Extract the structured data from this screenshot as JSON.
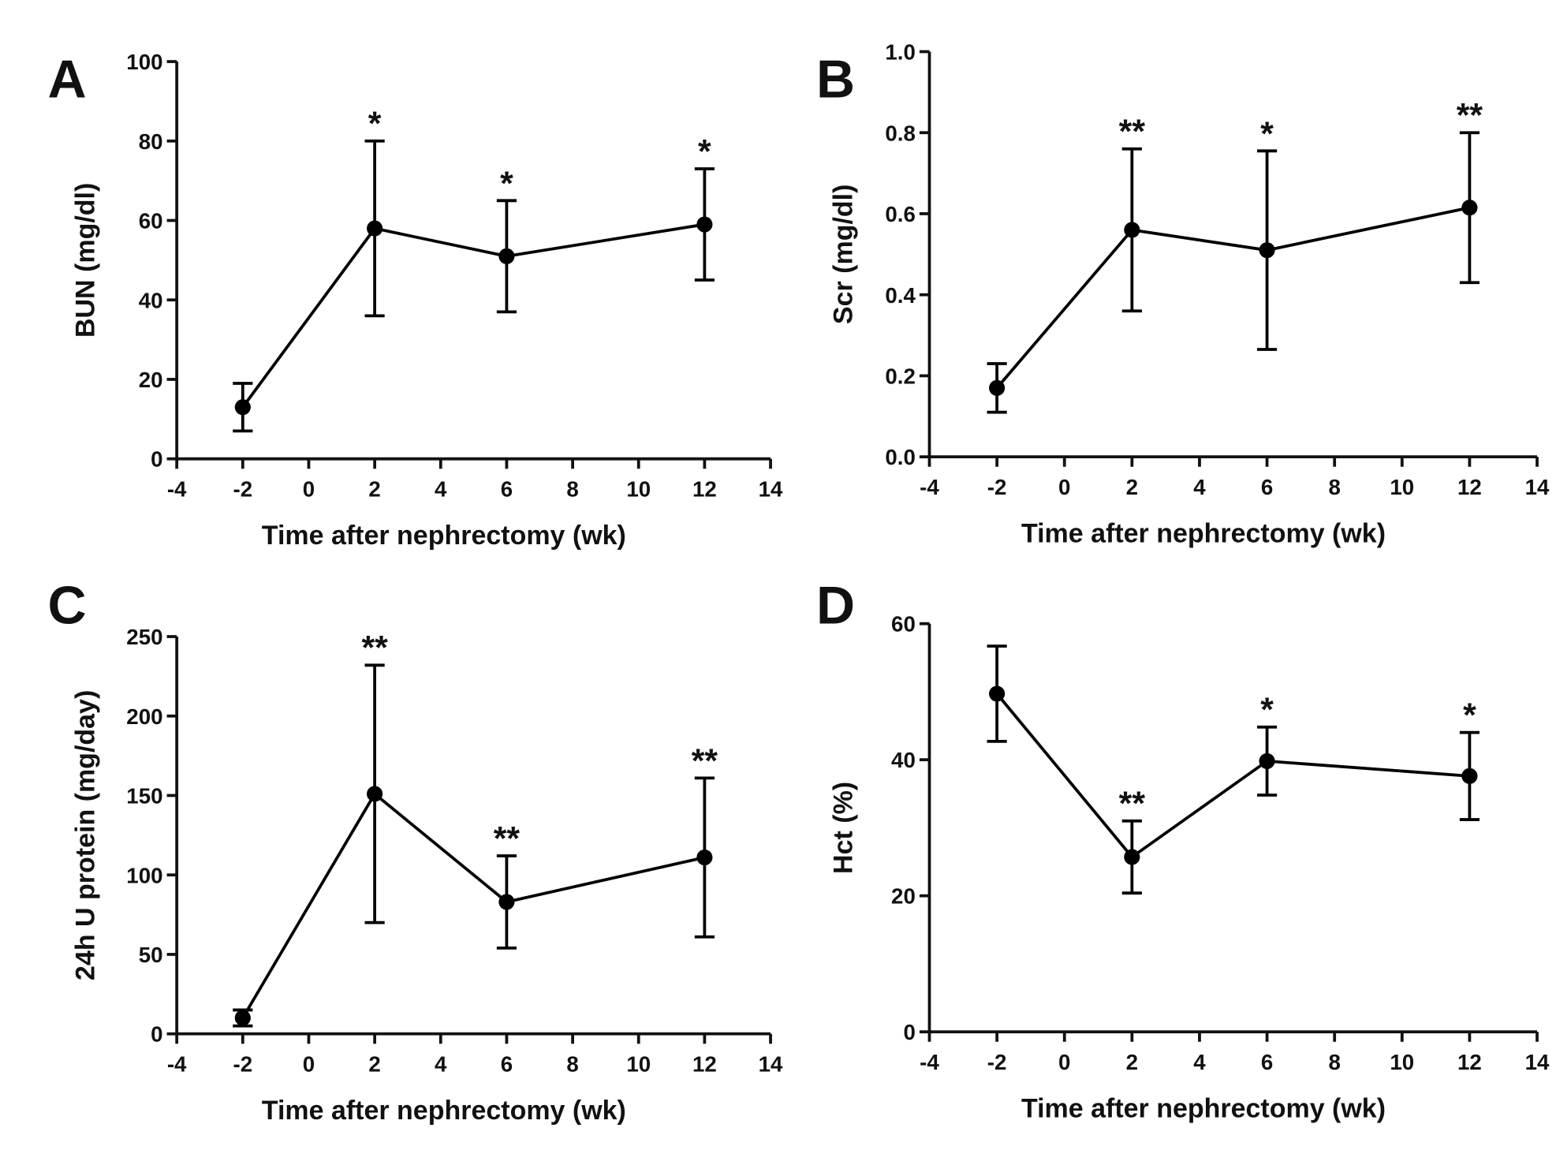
{
  "chart_data": [
    {
      "type": "line",
      "panel": "A",
      "xlabel": "Time after nephrectomy (wk)",
      "ylabel": "BUN (mg/dl)",
      "x": [
        -2,
        2,
        6,
        12
      ],
      "values": [
        13,
        58,
        51,
        59
      ],
      "errors": [
        6,
        22,
        14,
        14
      ],
      "color": "#000000",
      "xlim": [
        -4,
        14
      ],
      "xticks": [
        -4,
        -2,
        0,
        2,
        4,
        6,
        8,
        10,
        12,
        14
      ],
      "ylim": [
        0,
        100
      ],
      "yticks": [
        0,
        20,
        40,
        60,
        80,
        100
      ],
      "annotations": [
        {
          "x": 2,
          "text": "*"
        },
        {
          "x": 6,
          "text": "*"
        },
        {
          "x": 12,
          "text": "*"
        }
      ]
    },
    {
      "type": "line",
      "panel": "B",
      "xlabel": "Time after nephrectomy (wk)",
      "ylabel": "Scr (mg/dl)",
      "x": [
        -2,
        2,
        6,
        12
      ],
      "values": [
        0.17,
        0.56,
        0.51,
        0.615
      ],
      "errors": [
        0.06,
        0.2,
        0.245,
        0.185
      ],
      "color": "#000000",
      "xlim": [
        -4,
        14
      ],
      "xticks": [
        -4,
        -2,
        0,
        2,
        4,
        6,
        8,
        10,
        12,
        14
      ],
      "ylim": [
        0,
        1
      ],
      "yticks": [
        {
          "value": 0,
          "label": "0.0"
        },
        0.2,
        0.4,
        0.6,
        0.8,
        {
          "value": 1,
          "label": "1.0"
        }
      ],
      "annotations": [
        {
          "x": 2,
          "text": "**"
        },
        {
          "x": 6,
          "text": "*"
        },
        {
          "x": 12,
          "text": "**"
        }
      ]
    },
    {
      "type": "line",
      "panel": "C",
      "xlabel": "Time after nephrectomy (wk)",
      "ylabel": "24h U protein (mg/day)",
      "x": [
        -2,
        2,
        6,
        12
      ],
      "values": [
        10,
        151,
        83,
        111
      ],
      "errors": [
        5,
        81,
        29,
        50
      ],
      "color": "#000000",
      "xlim": [
        -4,
        14
      ],
      "xticks": [
        -4,
        -2,
        0,
        2,
        4,
        6,
        8,
        10,
        12,
        14
      ],
      "ylim": [
        0,
        250
      ],
      "yticks": [
        0,
        50,
        100,
        150,
        200,
        250
      ],
      "annotations": [
        {
          "x": 2,
          "text": "**"
        },
        {
          "x": 6,
          "text": "**"
        },
        {
          "x": 12,
          "text": "**"
        }
      ]
    },
    {
      "type": "line",
      "panel": "D",
      "xlabel": "Time after nephrectomy (wk)",
      "ylabel": "Hct (%)",
      "x": [
        -2,
        2,
        6,
        12
      ],
      "values": [
        49.7,
        25.7,
        39.8,
        37.6
      ],
      "errors": [
        7,
        5.3,
        5,
        6.4
      ],
      "color": "#000000",
      "xlim": [
        -4,
        14
      ],
      "xticks": [
        -4,
        -2,
        0,
        2,
        4,
        6,
        8,
        10,
        12,
        14
      ],
      "ylim": [
        0,
        60
      ],
      "yticks": [
        0,
        20,
        40,
        60
      ],
      "annotations": [
        {
          "x": 2,
          "text": "**"
        },
        {
          "x": 6,
          "text": "*"
        },
        {
          "x": 12,
          "text": "*"
        }
      ]
    }
  ]
}
